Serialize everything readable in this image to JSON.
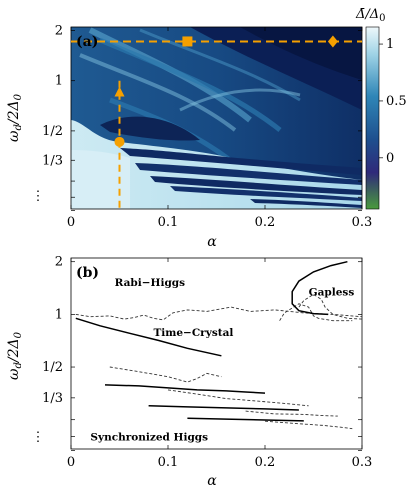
{
  "chart_data": [
    {
      "type": "heatmap",
      "panel_label": "(a)",
      "xlabel": "α",
      "ylabel": "ω_d/2Δ_0",
      "xlim": [
        0,
        0.3
      ],
      "ylim": [
        0.17,
        2.1
      ],
      "y_scale": "log",
      "x_ticks": [
        {
          "value": 0,
          "label": "0"
        },
        {
          "value": 0.1,
          "label": "0.1"
        },
        {
          "value": 0.2,
          "label": "0.2"
        },
        {
          "value": 0.3,
          "label": "0.3"
        }
      ],
      "y_ticks": [
        {
          "value": 2,
          "label": "2"
        },
        {
          "value": 1,
          "label": "1"
        },
        {
          "value": 0.5,
          "label": "1/2"
        },
        {
          "value": 0.3333,
          "label": "1/3"
        },
        {
          "value": 0.25,
          "label": ""
        },
        {
          "value": 0.2,
          "label": ""
        },
        {
          "value": 0.1667,
          "label": ""
        }
      ],
      "y_ellipsis": "⋮",
      "colorbar": {
        "label": "Δ̄/Δ_0",
        "range": [
          -0.45,
          1.15
        ],
        "ticks": [
          {
            "value": 1,
            "label": "1"
          },
          {
            "value": 0.5,
            "label": "0.5"
          },
          {
            "value": 0,
            "label": "0"
          }
        ],
        "colors": [
          "#4a9b3d",
          "#2f2a7a",
          "#1e4f8e",
          "#2f86b7",
          "#9fd3e6",
          "#eef8fb"
        ]
      },
      "markers": [
        {
          "shape": "square",
          "x": 0.12,
          "y": 1.72,
          "color": "#f5a000"
        },
        {
          "shape": "diamond",
          "x": 0.27,
          "y": 1.72,
          "color": "#f5a000"
        },
        {
          "shape": "triangle",
          "x": 0.05,
          "y": 0.85,
          "color": "#f5a000"
        },
        {
          "shape": "circle",
          "x": 0.05,
          "y": 0.43,
          "color": "#f5a000"
        }
      ],
      "dashed_lines": [
        {
          "orientation": "horizontal",
          "value": 1.72,
          "color": "#f5a000"
        },
        {
          "orientation": "vertical",
          "value": 0.05,
          "from": 0.17,
          "to": 1.0,
          "color": "#f5a000"
        }
      ]
    },
    {
      "type": "line",
      "panel_label": "(b)",
      "xlabel": "α",
      "ylabel": "ω_d/2Δ_0",
      "xlim": [
        0,
        0.3
      ],
      "ylim": [
        0.17,
        2.1
      ],
      "y_scale": "log",
      "regions": [
        {
          "label": "Rabi−Higgs",
          "x": 0.045,
          "y": 1.45
        },
        {
          "label": "Gapless",
          "x": 0.245,
          "y": 1.28
        },
        {
          "label": "Time−Crystal",
          "x": 0.085,
          "y": 0.75
        },
        {
          "label": "Synchronized Higgs",
          "x": 0.02,
          "y": 0.19
        }
      ],
      "solid_series": [
        {
          "x": [
            0.285,
            0.268,
            0.25,
            0.235,
            0.228,
            0.228,
            0.235,
            0.25,
            0.265
          ],
          "y": [
            2.0,
            1.9,
            1.75,
            1.55,
            1.35,
            1.15,
            1.05,
            1.01,
            1.0
          ]
        },
        {
          "x": [
            0.005,
            0.03,
            0.06,
            0.09,
            0.12,
            0.155
          ],
          "y": [
            0.95,
            0.86,
            0.78,
            0.71,
            0.64,
            0.58
          ]
        },
        {
          "x": [
            0.035,
            0.07,
            0.1,
            0.13,
            0.16,
            0.18,
            0.2
          ],
          "y": [
            0.395,
            0.39,
            0.38,
            0.37,
            0.365,
            0.36,
            0.355
          ]
        },
        {
          "x": [
            0.08,
            0.12,
            0.16,
            0.2,
            0.235
          ],
          "y": [
            0.3,
            0.296,
            0.292,
            0.288,
            0.284
          ]
        },
        {
          "x": [
            0.12,
            0.16,
            0.2,
            0.24
          ],
          "y": [
            0.255,
            0.252,
            0.249,
            0.246
          ]
        }
      ],
      "dashed_series": [
        {
          "x": [
            0.005,
            0.02,
            0.04,
            0.055,
            0.065,
            0.075,
            0.085,
            0.095,
            0.105,
            0.12,
            0.14,
            0.165,
            0.185,
            0.21,
            0.24,
            0.27,
            0.3
          ],
          "y": [
            1.0,
            0.97,
            0.98,
            0.94,
            0.96,
            0.99,
            0.95,
            0.93,
            1.02,
            1.06,
            1.04,
            1.1,
            1.04,
            1.06,
            1.02,
            1.0,
            0.97
          ]
        },
        {
          "x": [
            0.215,
            0.22,
            0.235,
            0.245,
            0.25,
            0.255,
            0.27,
            0.29
          ],
          "y": [
            0.92,
            1.02,
            1.15,
            1.1,
            0.98,
            0.95,
            0.92,
            0.92
          ]
        },
        {
          "x": [
            0.235,
            0.24,
            0.25,
            0.258,
            0.262,
            0.27,
            0.285,
            0.3
          ],
          "y": [
            1.1,
            1.2,
            1.3,
            1.22,
            1.1,
            1.0,
            0.95,
            0.94
          ]
        },
        {
          "x": [
            0.04,
            0.07,
            0.1,
            0.12,
            0.13,
            0.14,
            0.155
          ],
          "y": [
            0.5,
            0.47,
            0.44,
            0.41,
            0.43,
            0.46,
            0.44
          ]
        },
        {
          "x": [
            0.1,
            0.13,
            0.16,
            0.19,
            0.22,
            0.245
          ],
          "y": [
            0.37,
            0.35,
            0.33,
            0.32,
            0.31,
            0.3
          ]
        },
        {
          "x": [
            0.18,
            0.21,
            0.24,
            0.26,
            0.275
          ],
          "y": [
            0.28,
            0.27,
            0.268,
            0.264,
            0.262
          ]
        },
        {
          "x": [
            0.2,
            0.23,
            0.26,
            0.28,
            0.29
          ],
          "y": [
            0.245,
            0.238,
            0.232,
            0.226,
            0.222
          ]
        }
      ]
    }
  ]
}
